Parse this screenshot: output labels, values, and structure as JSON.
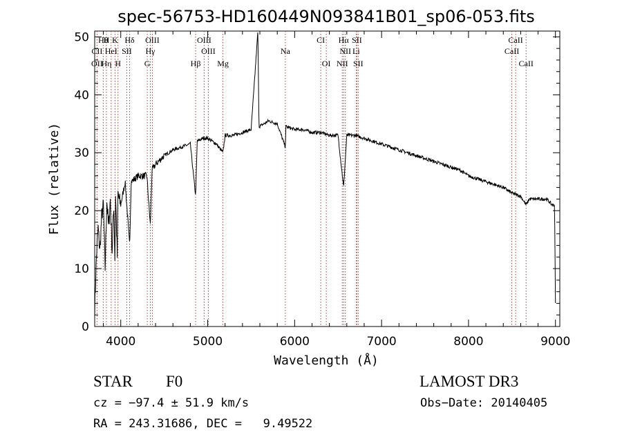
{
  "chart_data": {
    "type": "line",
    "title": "spec-56753-HD160449N093841B01_sp06-053.fits",
    "xlabel": "Wavelength (Å)",
    "ylabel": "Flux (relative)",
    "xlim": [
      3700,
      9050
    ],
    "ylim": [
      0,
      51
    ],
    "xticks": [
      4000,
      5000,
      6000,
      7000,
      8000,
      9000
    ],
    "yticks": [
      0,
      10,
      20,
      30,
      40,
      50
    ],
    "grid": false,
    "series": [
      {
        "name": "flux",
        "x": [
          3700,
          3720,
          3740,
          3760,
          3780,
          3800,
          3820,
          3840,
          3860,
          3880,
          3900,
          3920,
          3933,
          3940,
          3960,
          3968,
          3980,
          4000,
          4050,
          4102,
          4120,
          4200,
          4300,
          4340,
          4360,
          4400,
          4500,
          4600,
          4700,
          4800,
          4861,
          4880,
          4950,
          5000,
          5100,
          5175,
          5200,
          5300,
          5400,
          5500,
          5577,
          5590,
          5650,
          5700,
          5800,
          5893,
          5900,
          6000,
          6100,
          6200,
          6300,
          6400,
          6500,
          6563,
          6600,
          6700,
          6800,
          6900,
          7000,
          7100,
          7200,
          7300,
          7400,
          7500,
          7600,
          7700,
          7800,
          7900,
          8000,
          8100,
          8200,
          8300,
          8400,
          8500,
          8600,
          8662,
          8700,
          8800,
          8900,
          8960,
          8990,
          9000
        ],
        "values": [
          3,
          12,
          17,
          13,
          19,
          21,
          10,
          22,
          17,
          22,
          13,
          21,
          11,
          23,
          12,
          23,
          22,
          21,
          25,
          14,
          25,
          26,
          26,
          17.5,
          27,
          28,
          29.5,
          30.5,
          31,
          31.5,
          22.5,
          32,
          32.5,
          32.5,
          31.5,
          30,
          33,
          33,
          33.5,
          34,
          51,
          34.5,
          35,
          35.5,
          35,
          31,
          34.5,
          34,
          34,
          33.5,
          33.5,
          33,
          33,
          24,
          33,
          33,
          32.5,
          32,
          31.5,
          31,
          30.5,
          30,
          29.5,
          29,
          28.5,
          28,
          27.5,
          27,
          26,
          25.5,
          25,
          24.5,
          24,
          23,
          22.5,
          21,
          22,
          22,
          22,
          21,
          21,
          4
        ]
      }
    ],
    "lines": [
      {
        "name": "Hθ",
        "wl": 3798,
        "row": 0
      },
      {
        "name": "H",
        "wl": 3835,
        "row": 0
      },
      {
        "name": "K",
        "wl": 3934,
        "row": 0
      },
      {
        "name": "Hδ",
        "wl": 4102,
        "row": 0
      },
      {
        "name": "OIII",
        "wl": 4363,
        "row": 0
      },
      {
        "name": "OIII",
        "wl": 4959,
        "row": 0
      },
      {
        "name": "CI",
        "wl": 6300,
        "row": 0
      },
      {
        "name": "Hα",
        "wl": 6563,
        "row": 0
      },
      {
        "name": "SII",
        "wl": 6716,
        "row": 0
      },
      {
        "name": "CaII",
        "wl": 8542,
        "row": 0
      },
      {
        "name": "CII",
        "wl": 3727,
        "row": 1
      },
      {
        "name": "HeI",
        "wl": 3889,
        "row": 1
      },
      {
        "name": "SII",
        "wl": 4069,
        "row": 1
      },
      {
        "name": "Hγ",
        "wl": 4340,
        "row": 1
      },
      {
        "name": "OIII",
        "wl": 5007,
        "row": 1
      },
      {
        "name": "Na",
        "wl": 5893,
        "row": 1
      },
      {
        "name": "NII",
        "wl": 6583,
        "row": 1
      },
      {
        "name": "Li",
        "wl": 6708,
        "row": 1
      },
      {
        "name": "CaII",
        "wl": 8498,
        "row": 1
      },
      {
        "name": "OII",
        "wl": 3727,
        "row": 2
      },
      {
        "name": "Hη",
        "wl": 3835,
        "row": 2
      },
      {
        "name": "H",
        "wl": 3968,
        "row": 2
      },
      {
        "name": "G",
        "wl": 4305,
        "row": 2
      },
      {
        "name": "Hβ",
        "wl": 4861,
        "row": 2
      },
      {
        "name": "Mg",
        "wl": 5175,
        "row": 2
      },
      {
        "name": "OI",
        "wl": 6364,
        "row": 2
      },
      {
        "name": "NII",
        "wl": 6548,
        "row": 2
      },
      {
        "name": "SII",
        "wl": 6731,
        "row": 2
      },
      {
        "name": "CaII",
        "wl": 8662,
        "row": 2
      }
    ]
  },
  "info": {
    "class_label": "STAR",
    "subclass": "F0",
    "survey": "LAMOST DR3",
    "cz": "cz = −97.4 ± 51.9 km/s",
    "obs_date": "Obs−Date: 20140405",
    "coords": "RA = 243.31686, DEC =   9.49522"
  }
}
